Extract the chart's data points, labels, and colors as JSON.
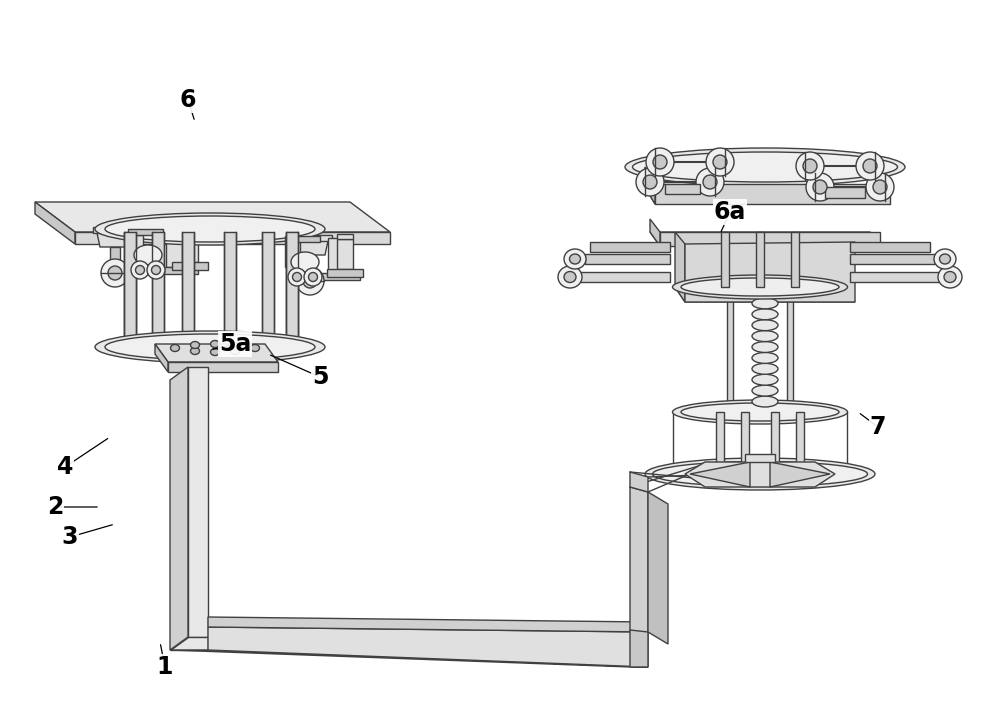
{
  "bg_color": "#ffffff",
  "lc": "#404040",
  "fc_light": "#f0f0f0",
  "fc_mid": "#e0e0e0",
  "fc_dark": "#c8c8c8",
  "fc_darker": "#b8b8b8",
  "lw": 1.0,
  "label_fs": 17,
  "fig_w": 10.0,
  "fig_h": 7.22
}
